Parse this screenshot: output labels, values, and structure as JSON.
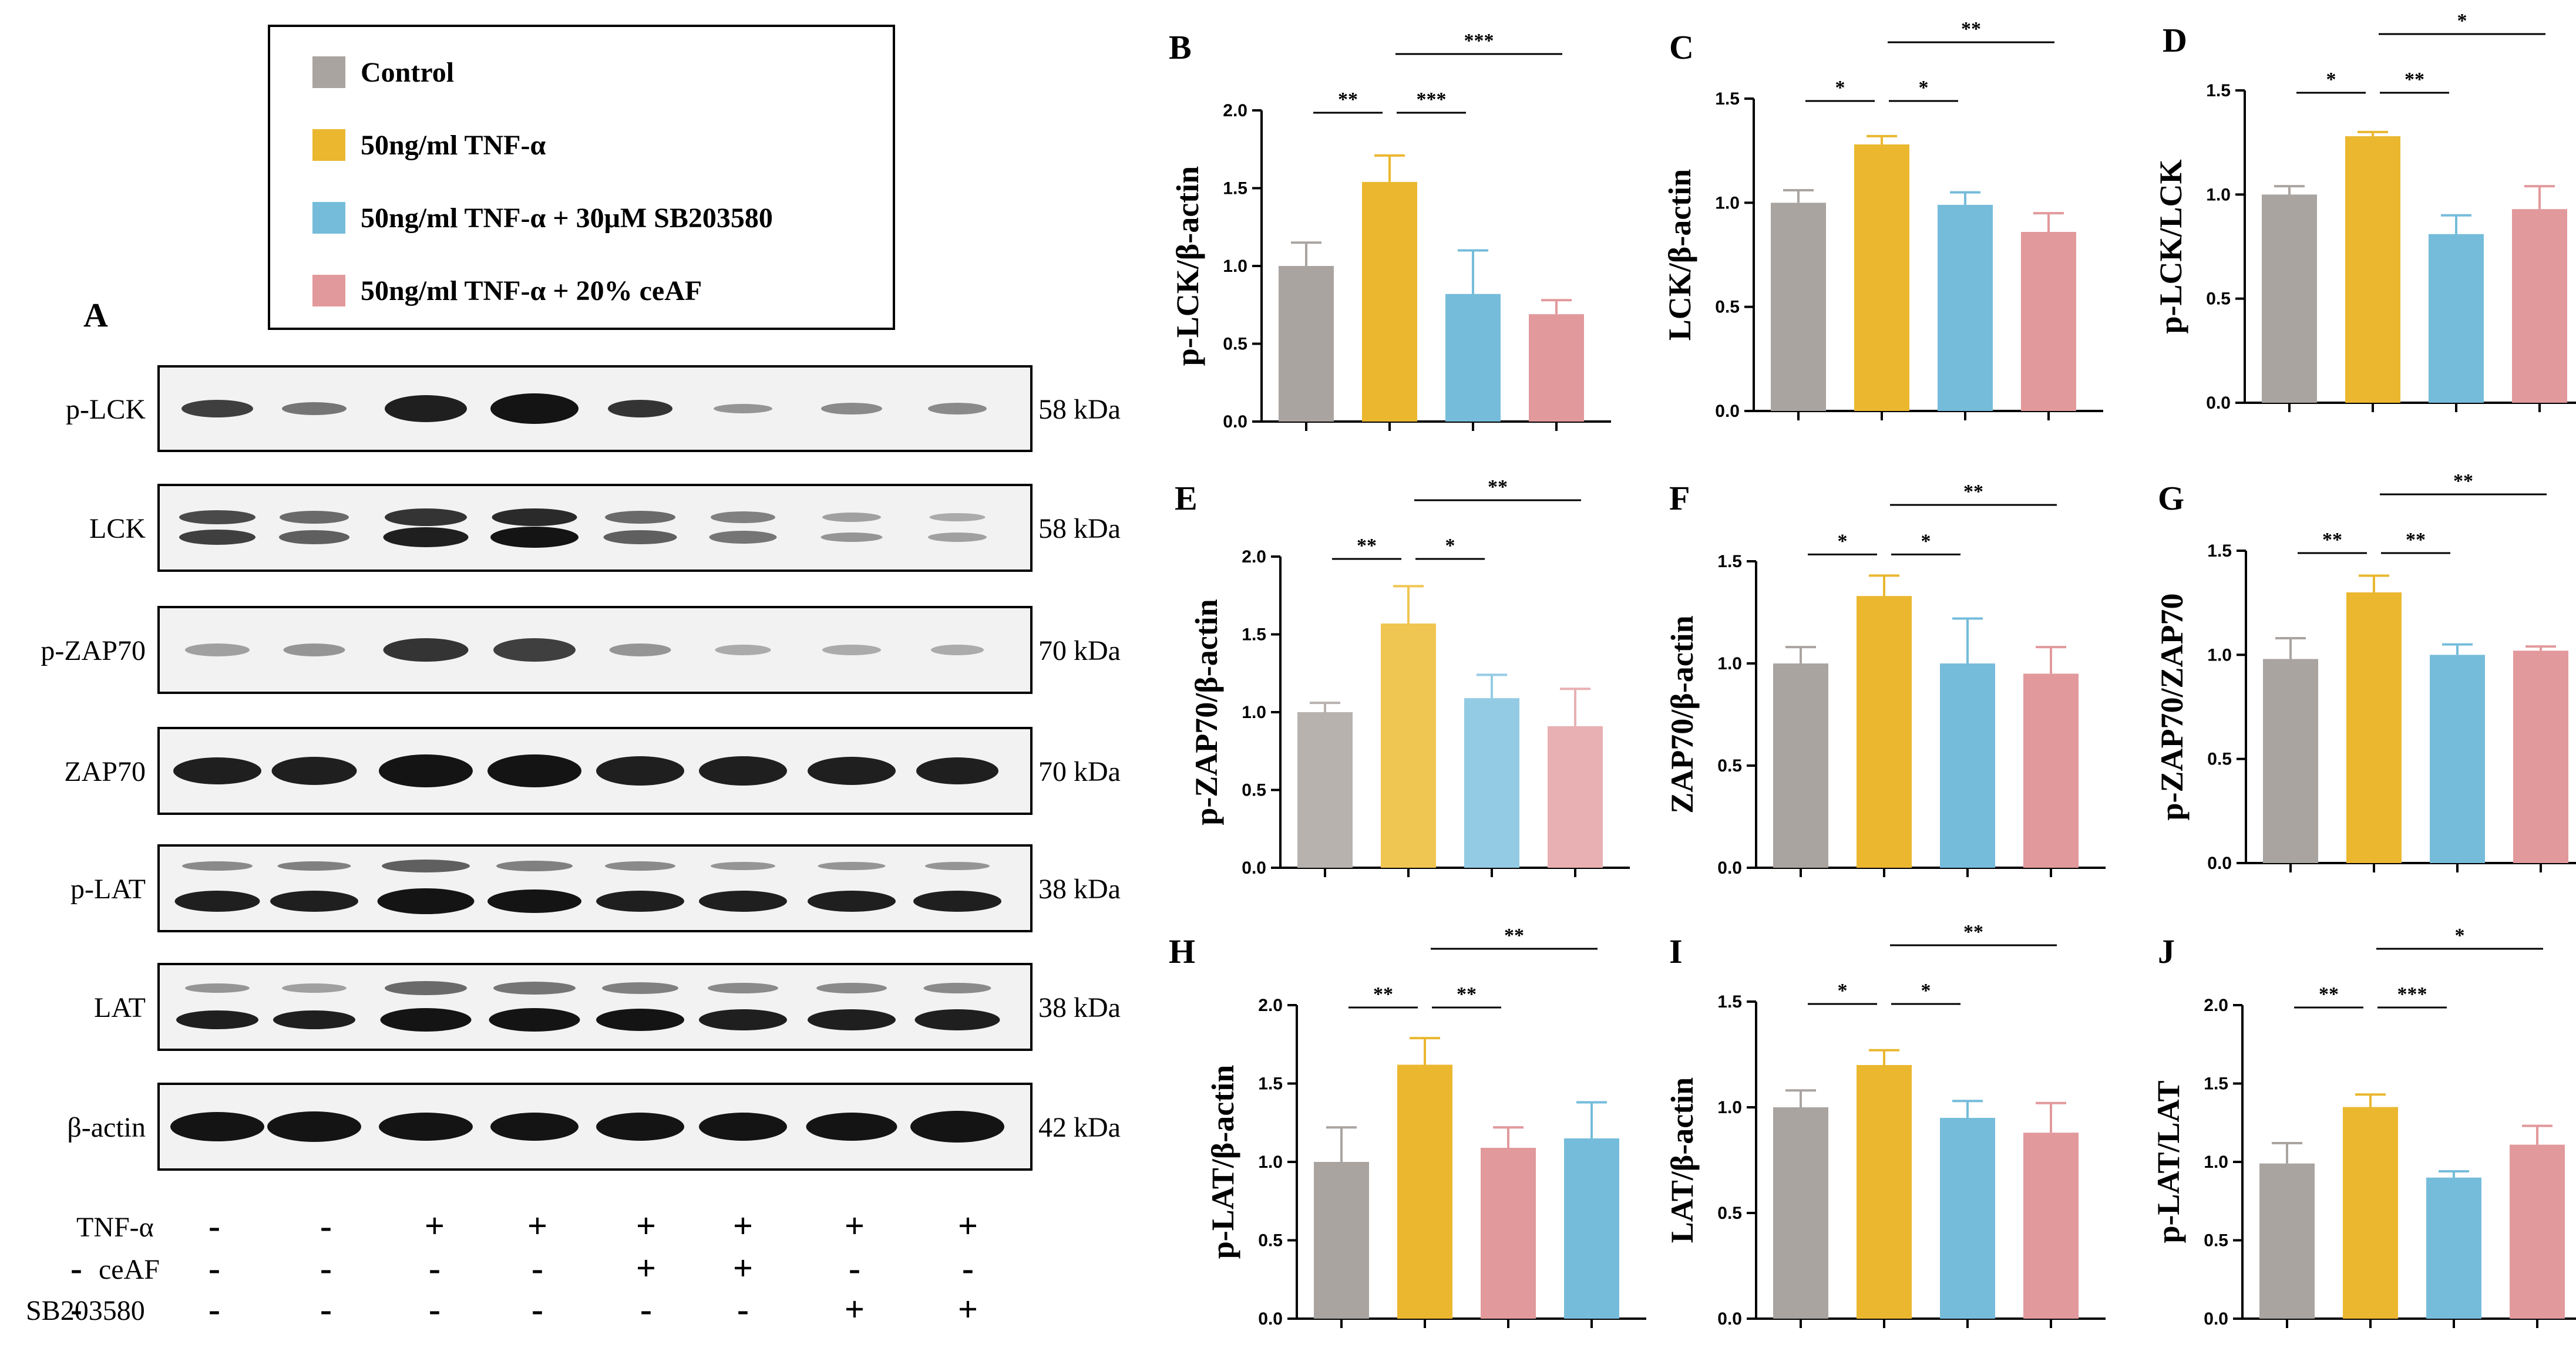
{
  "legend": {
    "items": [
      {
        "label": "Control",
        "color": "#aaa4a1"
      },
      {
        "label": "50ng/ml TNF-α",
        "color": "#eab72f"
      },
      {
        "label": "50ng/ml TNF-α + 30μM SB203580",
        "color": "#75bcdb"
      },
      {
        "label": "50ng/ml TNF-α + 20% ceAF",
        "color": "#e2999c"
      }
    ]
  },
  "blot": {
    "panel_label": "A",
    "bands": [
      {
        "name": "p-LCK",
        "kda": "58 kDa"
      },
      {
        "name": "LCK",
        "kda": "58 kDa"
      },
      {
        "name": "p-ZAP70",
        "kda": "70 kDa"
      },
      {
        "name": "ZAP70",
        "kda": "70 kDa"
      },
      {
        "name": "p-LAT",
        "kda": "38 kDa"
      },
      {
        "name": "LAT",
        "kda": "38 kDa"
      },
      {
        "name": "β-actin",
        "kda": "42 kDa"
      }
    ],
    "treatments": [
      {
        "name": "TNF-α",
        "signs": [
          "-",
          "-",
          "+",
          "+",
          "+",
          "+",
          "+",
          "+"
        ]
      },
      {
        "name": "ceAF",
        "signs": [
          "-",
          "-",
          "-",
          "-",
          "+",
          "+",
          "-",
          "-"
        ]
      },
      {
        "name": "SB203580",
        "signs": [
          "-",
          "-",
          "-",
          "-",
          "-",
          "-",
          "+",
          "+"
        ]
      }
    ]
  },
  "chart_data": [
    {
      "panel": "B",
      "type": "bar",
      "ylabel": "p-LCK/β-actin",
      "ylim": [
        0,
        2.0
      ],
      "ticks": [
        "0.0",
        "0.5",
        "1.0",
        "1.5",
        "2.0"
      ],
      "categories": [
        "Control",
        "50ng/ml TNF-α",
        "50ng/ml TNF-α + 30μM SB203580",
        "50ng/ml TNF-α + 20% ceAF"
      ],
      "values": [
        1.0,
        1.54,
        0.82,
        0.69
      ],
      "errors": [
        0.15,
        0.17,
        0.28,
        0.09
      ],
      "colors": [
        "#aaa4a1",
        "#eab72f",
        "#75bcdb",
        "#e2999c"
      ],
      "sig": [
        {
          "from": 0,
          "to": 1,
          "text": "**"
        },
        {
          "from": 1,
          "to": 2,
          "text": "***"
        },
        {
          "from": 1,
          "to": 3,
          "text": "***"
        }
      ]
    },
    {
      "panel": "C",
      "type": "bar",
      "ylabel": "LCK/β-actin",
      "ylim": [
        0,
        1.5
      ],
      "ticks": [
        "0.0",
        "0.5",
        "1.0",
        "1.5"
      ],
      "categories": [
        "Control",
        "50ng/ml TNF-α",
        "50ng/ml TNF-α + 30μM SB203580",
        "50ng/ml TNF-α + 20% ceAF"
      ],
      "values": [
        1.0,
        1.28,
        0.99,
        0.86
      ],
      "errors": [
        0.06,
        0.04,
        0.06,
        0.09
      ],
      "colors": [
        "#aaa4a1",
        "#eab72f",
        "#75bcdb",
        "#e2999c"
      ],
      "sig": [
        {
          "from": 0,
          "to": 1,
          "text": "*"
        },
        {
          "from": 1,
          "to": 2,
          "text": "*"
        },
        {
          "from": 1,
          "to": 3,
          "text": "**"
        }
      ]
    },
    {
      "panel": "D",
      "type": "bar",
      "ylabel": "p-LCK/LCK",
      "ylim": [
        0,
        1.5
      ],
      "ticks": [
        "0.0",
        "0.5",
        "1.0",
        "1.5"
      ],
      "categories": [
        "Control",
        "50ng/ml TNF-α",
        "50ng/ml TNF-α + 30μM SB203580",
        "50ng/ml TNF-α + 20% ceAF"
      ],
      "values": [
        1.0,
        1.28,
        0.81,
        0.93
      ],
      "errors": [
        0.04,
        0.02,
        0.09,
        0.11
      ],
      "colors": [
        "#aaa4a1",
        "#eab72f",
        "#75bcdb",
        "#e2999c"
      ],
      "sig": [
        {
          "from": 0,
          "to": 1,
          "text": "*"
        },
        {
          "from": 1,
          "to": 2,
          "text": "**"
        },
        {
          "from": 1,
          "to": 3,
          "text": "*"
        }
      ]
    },
    {
      "panel": "E",
      "type": "bar",
      "ylabel": "p-ZAP70/β-actin",
      "ylim": [
        0,
        2.0
      ],
      "ticks": [
        "0.0",
        "0.5",
        "1.0",
        "1.5",
        "2.0"
      ],
      "categories": [
        "Control",
        "50ng/ml TNF-α",
        "50ng/ml TNF-α + 30μM SB203580",
        "50ng/ml TNF-α + 20% ceAF"
      ],
      "values": [
        1.0,
        1.57,
        1.09,
        0.91
      ],
      "errors": [
        0.06,
        0.24,
        0.15,
        0.24
      ],
      "colors": [
        "#b7b2ae",
        "#f0c652",
        "#93cbe4",
        "#e8b0b2"
      ],
      "sig": [
        {
          "from": 0,
          "to": 1,
          "text": "**"
        },
        {
          "from": 1,
          "to": 2,
          "text": "*"
        },
        {
          "from": 1,
          "to": 3,
          "text": "**"
        }
      ]
    },
    {
      "panel": "F",
      "type": "bar",
      "ylabel": "ZAP70/β-actin",
      "ylim": [
        0,
        1.5
      ],
      "ticks": [
        "0.0",
        "0.5",
        "1.0",
        "1.5"
      ],
      "categories": [
        "Control",
        "50ng/ml TNF-α",
        "50ng/ml TNF-α + 30μM SB203580",
        "50ng/ml TNF-α + 20% ceAF"
      ],
      "values": [
        1.0,
        1.33,
        1.0,
        0.95
      ],
      "errors": [
        0.08,
        0.1,
        0.22,
        0.13
      ],
      "colors": [
        "#aaa4a1",
        "#eab72f",
        "#75bcdb",
        "#e2999c"
      ],
      "sig": [
        {
          "from": 0,
          "to": 1,
          "text": "*"
        },
        {
          "from": 1,
          "to": 2,
          "text": "*"
        },
        {
          "from": 1,
          "to": 3,
          "text": "**"
        }
      ]
    },
    {
      "panel": "G",
      "type": "bar",
      "ylabel": "p-ZAP70/ZAP70",
      "ylim": [
        0,
        1.5
      ],
      "ticks": [
        "0.0",
        "0.5",
        "1.0",
        "1.5"
      ],
      "categories": [
        "Control",
        "50ng/ml TNF-α",
        "50ng/ml TNF-α + 30μM SB203580",
        "50ng/ml TNF-α + 20% ceAF"
      ],
      "values": [
        0.98,
        1.3,
        1.0,
        1.02
      ],
      "errors": [
        0.1,
        0.08,
        0.05,
        0.02
      ],
      "colors": [
        "#aaa4a1",
        "#eab72f",
        "#75bcdb",
        "#e2999c"
      ],
      "sig": [
        {
          "from": 0,
          "to": 1,
          "text": "**"
        },
        {
          "from": 1,
          "to": 2,
          "text": "**"
        },
        {
          "from": 1,
          "to": 3,
          "text": "**"
        }
      ]
    },
    {
      "panel": "H",
      "type": "bar",
      "ylabel": "p-LAT/β-actin",
      "ylim": [
        0,
        2.0
      ],
      "ticks": [
        "0.0",
        "0.5",
        "1.0",
        "1.5",
        "2.0"
      ],
      "categories": [
        "Control",
        "50ng/ml TNF-α",
        "50ng/ml TNF-α + 20% ceAF",
        "50ng/ml TNF-α + 30μM SB203580"
      ],
      "values": [
        1.0,
        1.62,
        1.09,
        1.15
      ],
      "errors": [
        0.22,
        0.17,
        0.13,
        0.23
      ],
      "colors": [
        "#aaa4a1",
        "#eab72f",
        "#e2999c",
        "#75bcdb"
      ],
      "sig": [
        {
          "from": 0,
          "to": 1,
          "text": "**"
        },
        {
          "from": 1,
          "to": 2,
          "text": "**"
        },
        {
          "from": 1,
          "to": 3,
          "text": "**"
        }
      ]
    },
    {
      "panel": "I",
      "type": "bar",
      "ylabel": "LAT/β-actin",
      "ylim": [
        0,
        1.5
      ],
      "ticks": [
        "0.0",
        "0.5",
        "1.0",
        "1.5"
      ],
      "categories": [
        "Control",
        "50ng/ml TNF-α",
        "50ng/ml TNF-α + 30μM SB203580",
        "50ng/ml TNF-α + 20% ceAF"
      ],
      "values": [
        1.0,
        1.2,
        0.95,
        0.88
      ],
      "errors": [
        0.08,
        0.07,
        0.08,
        0.14
      ],
      "colors": [
        "#aaa4a1",
        "#eab72f",
        "#75bcdb",
        "#e2999c"
      ],
      "sig": [
        {
          "from": 0,
          "to": 1,
          "text": "*"
        },
        {
          "from": 1,
          "to": 2,
          "text": "*"
        },
        {
          "from": 1,
          "to": 3,
          "text": "**"
        }
      ]
    },
    {
      "panel": "J",
      "type": "bar",
      "ylabel": "p-LAT/LAT",
      "ylim": [
        0,
        2.0
      ],
      "ticks": [
        "0.0",
        "0.5",
        "1.0",
        "1.5",
        "2.0"
      ],
      "categories": [
        "Control",
        "50ng/ml TNF-α",
        "50ng/ml TNF-α + 30μM SB203580",
        "50ng/ml TNF-α + 20% ceAF"
      ],
      "values": [
        0.99,
        1.35,
        0.9,
        1.11
      ],
      "errors": [
        0.13,
        0.08,
        0.04,
        0.12
      ],
      "colors": [
        "#aaa4a1",
        "#eab72f",
        "#75bcdb",
        "#e2999c"
      ],
      "sig": [
        {
          "from": 0,
          "to": 1,
          "text": "**"
        },
        {
          "from": 1,
          "to": 2,
          "text": "***"
        },
        {
          "from": 1,
          "to": 3,
          "text": "*"
        }
      ]
    }
  ]
}
